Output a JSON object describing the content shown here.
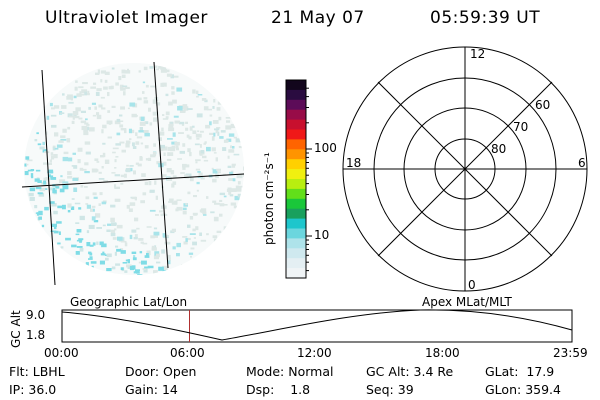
{
  "header": {
    "title": "Ultraviolet Imager",
    "date": "21 May 07",
    "time": "05:59:39 UT"
  },
  "colorbar": {
    "label": "photon cm⁻²s⁻¹",
    "ticks": [
      {
        "label": "100",
        "value": 100
      },
      {
        "label": "10",
        "value": 10
      }
    ],
    "colors": [
      "#f0f4f6",
      "#e4eff3",
      "#cfe9ef",
      "#aee3ea",
      "#6bd6de",
      "#1ec6cc",
      "#19a05d",
      "#1ac73a",
      "#62df1a",
      "#b8ee10",
      "#f0f010",
      "#ffd000",
      "#ff9400",
      "#ff6400",
      "#f01818",
      "#c8102e",
      "#980c48",
      "#5c0c58",
      "#2a0c40",
      "#12061c"
    ]
  },
  "polar_plot": {
    "mlt_labels": {
      "top": "12",
      "right": "6",
      "bottom": "0",
      "left": "18"
    },
    "lat_labels": [
      "60",
      "70",
      "80"
    ]
  },
  "altitude_plot": {
    "ylabel": "GC Alt",
    "yticks": [
      "9.0",
      "1.8"
    ],
    "left_caption": "Geographic Lat/Lon",
    "right_caption": "Apex MLat/MLT",
    "xticks": [
      "00:00",
      "06:00",
      "12:00",
      "18:00",
      "23:59"
    ],
    "current_time_hours": 6.0
  },
  "status": {
    "flt": {
      "label": "Flt:",
      "value": "LBHL"
    },
    "ip": {
      "label": "IP:",
      "value": "36.0"
    },
    "door": {
      "label": "Door:",
      "value": "Open"
    },
    "gain": {
      "label": "Gain:",
      "value": "14"
    },
    "mode": {
      "label": "Mode:",
      "value": "Normal"
    },
    "dsp": {
      "label": "Dsp:",
      "value": "1.8"
    },
    "gcalt": {
      "label": "GC Alt:",
      "value": "3.4 Re"
    },
    "seq": {
      "label": "Seq:",
      "value": "39"
    },
    "glat": {
      "label": "GLat:",
      "value": "17.9"
    },
    "glon": {
      "label": "GLon:",
      "value": "359.4"
    }
  }
}
